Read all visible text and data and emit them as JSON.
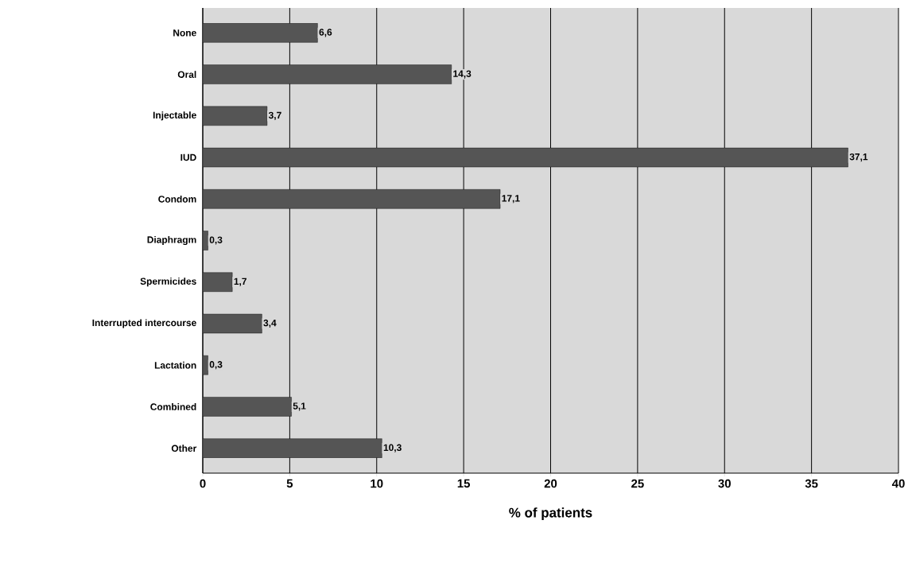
{
  "chart_data": {
    "type": "bar",
    "orientation": "horizontal",
    "xlabel": "% of patients",
    "categories": [
      "None",
      "Oral",
      "Injectable",
      "IUD",
      "Condom",
      "Diaphragm",
      "Spermicides",
      "Interrupted intercourse",
      "Lactation",
      "Combined",
      "Other"
    ],
    "values": [
      6.6,
      14.3,
      3.7,
      37.1,
      17.1,
      0.3,
      1.7,
      3.4,
      0.3,
      5.1,
      10.3
    ],
    "value_labels": [
      "6,6",
      "14,3",
      "3,7",
      "37,1",
      "17,1",
      "0,3",
      "1,7",
      "3,4",
      "0,3",
      "5,1",
      "10,3"
    ],
    "color": "#555555",
    "xlim": [
      0,
      40
    ],
    "xticks": [
      0,
      5,
      10,
      15,
      20,
      25,
      30,
      35,
      40
    ],
    "grid": "x"
  }
}
